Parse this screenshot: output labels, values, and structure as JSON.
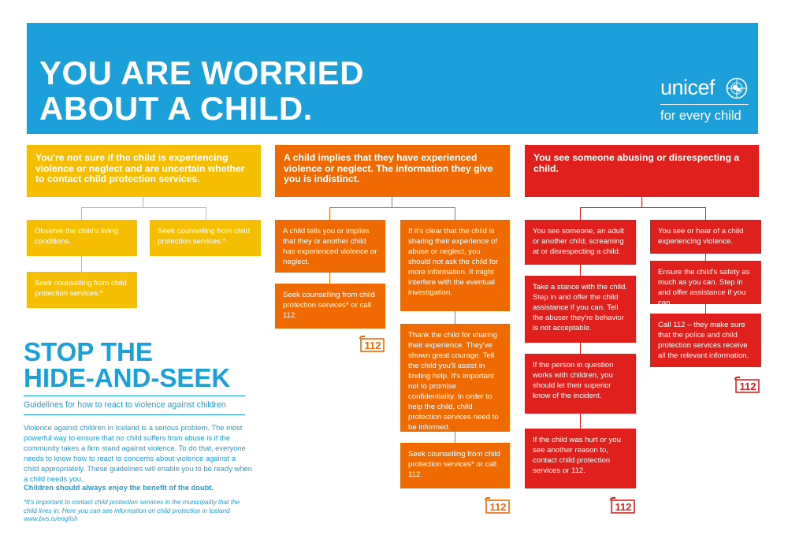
{
  "header": {
    "title": "YOU ARE WORRIED\nABOUT A CHILD.",
    "logo_word": "unicef",
    "logo_tagline": "for every child",
    "colors": {
      "blue": "#1ca0d9",
      "yellow": "#f6be00",
      "orange": "#ef6a00",
      "red": "#e0201c"
    }
  },
  "columns": {
    "yellow": {
      "heading": "You're not sure if the child is experiencing violence or neglect and are uncertain whether to contact child protection services.",
      "box1": "Observe the child's living conditions.",
      "box2": "Seek counselling from child protection services.*",
      "box3": "Seek counselling from child protection services.*"
    },
    "orange": {
      "heading": "A child implies that they have experienced violence or neglect. The information they give you is indistinct.",
      "left1": "A child tells you or implies that they or another child has experienced violence or neglect.",
      "left2": "Seek counselling from child protection services* or call 112.",
      "right1": "If it's clear that the child is sharing their experience of abuse or neglect, you should not ask the child for more information. It might interfere with the eventual investigation.",
      "right2": "Thank the child for sharing their experience. They've shown great courage. Tell the child you'll assist in finding help. It's important not to promise confidentiality. In order to help the child, child protection services need to be informed.",
      "right3": "Seek counselling from child protection services* or call 112."
    },
    "red": {
      "heading": "You see someone abusing or disrespecting a child.",
      "left1": "You see someone, an adult or another child, screaming at or disrespecting a child.",
      "left2": "Take a stance with the child. Step in and offer the child assistance if you can. Tell the abuser they're behavior is not acceptable.",
      "left3": "If the person in question works with children, you should let their superior know of the incident.",
      "left4": "If the child was hurt or you see another reason to, contact child protection services or 112.",
      "right1": "You see or hear of a child experiencing violence.",
      "right2": "Ensure the child's safety as much as you can. Step in and offer assistance if you can.",
      "right3": "Call 112 – they make sure that the police and child protection services receive all the relevant information."
    }
  },
  "emergency_label": "112",
  "guide": {
    "title": "STOP THE\nHIDE-AND-SEEK",
    "subtitle": "Guidelines for how to react to violence against children",
    "body": "Violence against children in Iceland is a serious problem. The most powerful way to ensure that no child suffers from abuse is if the community takes a firm stand against violence. To do that, everyone needs to know how to react to concerns about violence against a child appropriately. These guidelines will enable you to be ready when a child needs you.",
    "emphasis": "Children should always enjoy the benefit of the doubt.",
    "footnote": "*It's important to contact child protection services in the municipality that the child lives in. Here you can see information on child protection in Iceland www.bvs.is/english"
  }
}
